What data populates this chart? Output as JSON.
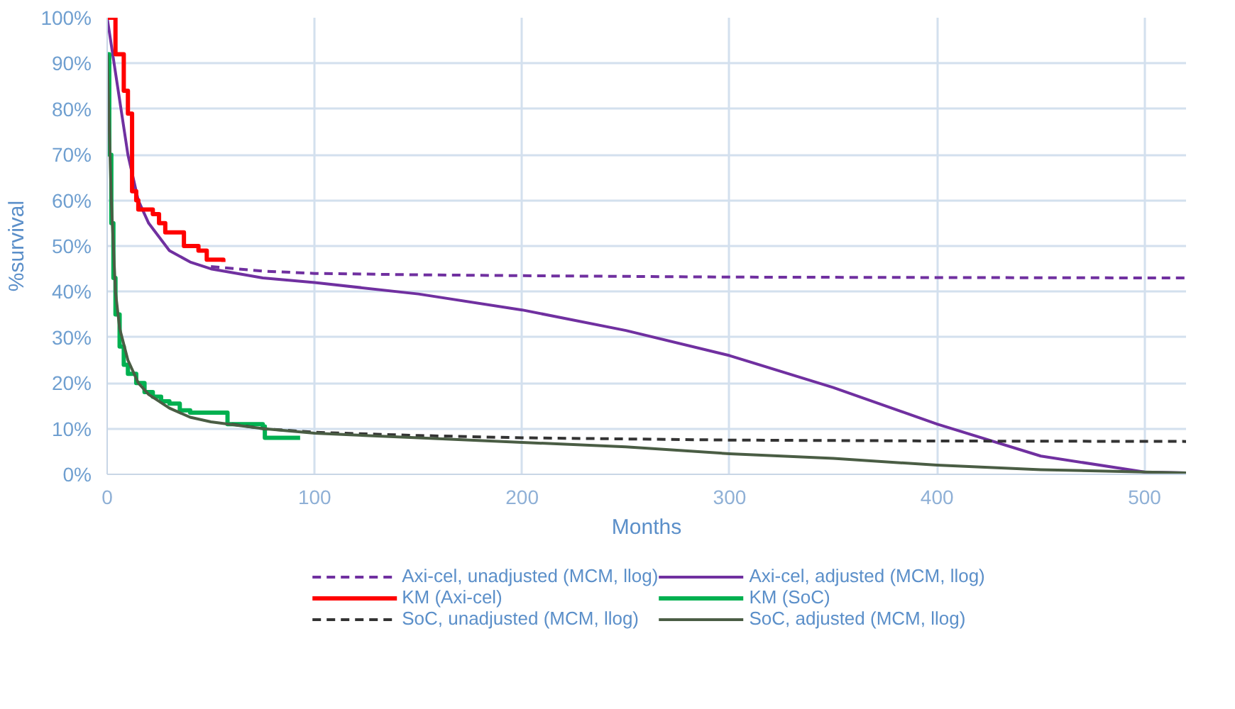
{
  "chart_data": {
    "type": "line",
    "xlabel": "Months",
    "ylabel": "%survival",
    "xlim": [
      0,
      520
    ],
    "xticks": [
      0,
      100,
      200,
      300,
      400,
      500
    ],
    "ylim": [
      0,
      100
    ],
    "yticks": [
      {
        "value": 0,
        "label": "0%"
      },
      {
        "value": 10,
        "label": "10%"
      },
      {
        "value": 20,
        "label": "20%"
      },
      {
        "value": 30,
        "label": "30%"
      },
      {
        "value": 40,
        "label": "40%"
      },
      {
        "value": 50,
        "label": "50%"
      },
      {
        "value": 60,
        "label": "60%"
      },
      {
        "value": 70,
        "label": "70%"
      },
      {
        "value": 80,
        "label": "80%"
      },
      {
        "value": 90,
        "label": "90%"
      },
      {
        "value": 100,
        "label": "100%"
      }
    ],
    "grid": true,
    "legend": "bottom",
    "marker": "none",
    "series": [
      {
        "name": "Axi-cel, unadjusted (MCM, llog)",
        "color": "#7030a0",
        "line_style": "dashed",
        "x": [
          50,
          75,
          100,
          150,
          200,
          300,
          400,
          520
        ],
        "values": [
          45.5,
          44.5,
          44,
          43.7,
          43.5,
          43.2,
          43.1,
          43
        ]
      },
      {
        "name": "Axi-cel, adjusted (MCM, llog)",
        "color": "#7030a0",
        "line_style": "solid",
        "x": [
          0,
          5,
          10,
          15,
          20,
          30,
          40,
          50,
          75,
          100,
          150,
          200,
          250,
          300,
          350,
          400,
          450,
          500,
          520
        ],
        "values": [
          100,
          85,
          70,
          60,
          55,
          49,
          46.5,
          45,
          43,
          42,
          39.5,
          36,
          31.5,
          26,
          19,
          11,
          4,
          0.5,
          0.3
        ]
      },
      {
        "name": "KM (Axi-cel)",
        "type": "step",
        "color": "#ff0000",
        "line_style": "solid",
        "x": [
          0,
          4,
          8,
          10,
          12,
          14,
          15,
          22,
          25,
          28,
          36,
          37,
          42,
          44,
          47,
          48,
          56
        ],
        "values": [
          100,
          92,
          84,
          79,
          62,
          60,
          58,
          57,
          55,
          53,
          53,
          50,
          50,
          49,
          49,
          47,
          46.5
        ]
      },
      {
        "name": "KM (SoC)",
        "type": "step",
        "color": "#00b050",
        "line_style": "solid",
        "x": [
          0,
          1,
          2,
          3,
          4,
          6,
          8,
          10,
          14,
          18,
          22,
          26,
          30,
          35,
          40,
          57,
          58,
          75,
          76,
          93
        ],
        "values": [
          92,
          70,
          55,
          43,
          35,
          28,
          24,
          22,
          20,
          18,
          17,
          16,
          15.5,
          14,
          13.5,
          13.5,
          11,
          10.5,
          8,
          8
        ]
      },
      {
        "name": "SoC, unadjusted (MCM, llog)",
        "color": "#333333",
        "line_style": "dashed",
        "x": [
          60,
          75,
          100,
          150,
          200,
          300,
          400,
          520
        ],
        "values": [
          11,
          10,
          9.2,
          8.5,
          8,
          7.5,
          7.3,
          7.2
        ]
      },
      {
        "name": "SoC, adjusted (MCM, llog)",
        "color": "#4a5d44",
        "line_style": "solid",
        "x": [
          0,
          2,
          4,
          6,
          10,
          15,
          20,
          30,
          40,
          50,
          75,
          100,
          150,
          200,
          250,
          300,
          350,
          400,
          450,
          500,
          520
        ],
        "values": [
          92,
          60,
          40,
          32,
          25,
          20,
          17.5,
          14.5,
          12.5,
          11.5,
          10,
          9,
          8,
          7,
          6,
          4.5,
          3.5,
          2,
          1,
          0.5,
          0.3
        ]
      }
    ]
  }
}
